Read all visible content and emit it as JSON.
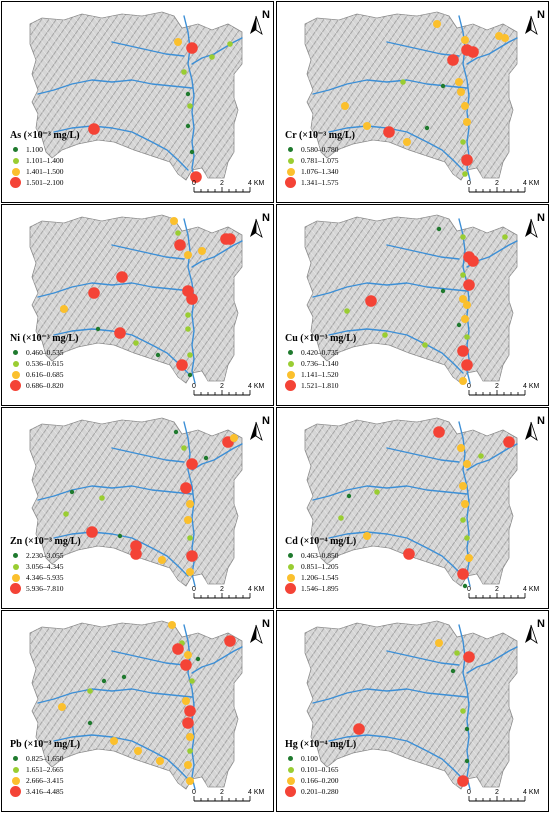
{
  "scale_bar": {
    "ticks": [
      "0",
      "2",
      "4 KM"
    ]
  },
  "north_label": "N",
  "colors": {
    "class1": "#1f7a2e",
    "class2": "#9acd32",
    "class3": "#fbc02d",
    "class4": "#f44336",
    "river": "#3c8fd6",
    "terrain": "#c8c8c8"
  },
  "panels": [
    {
      "id": "as",
      "title": "As (×10⁻³ mg/L)",
      "classes": [
        "1.100",
        "1.101–1.400",
        "1.401–1.500",
        "1.501–2.100"
      ]
    },
    {
      "id": "cr",
      "title": "Cr (×10⁻³ mg/L)",
      "classes": [
        "0.580–0.780",
        "0.781–1.075",
        "1.076–1.340",
        "1.341–1.575"
      ]
    },
    {
      "id": "ni",
      "title": "Ni (×10⁻³ mg/L)",
      "classes": [
        "0.460–0.535",
        "0.536–0.615",
        "0.616–0.685",
        "0.686–0.820"
      ]
    },
    {
      "id": "cu",
      "title": "Cu (×10⁻³ mg/L)",
      "classes": [
        "0.420–0.735",
        "0.736–1.140",
        "1.141–1.520",
        "1.521–1.810"
      ]
    },
    {
      "id": "zn",
      "title": "Zn (×10⁻³ mg/L)",
      "classes": [
        "2.230–3.055",
        "3.056–4.345",
        "4.346–5.935",
        "5.936–7.810"
      ]
    },
    {
      "id": "cd",
      "title": "Cd (×10⁻⁴ mg/L)",
      "classes": [
        "0.463–0.850",
        "0.851–1.205",
        "1.206–1.545",
        "1.546–1.895"
      ]
    },
    {
      "id": "pb",
      "title": "Pb (×10⁻³ mg/L)",
      "classes": [
        "0.825–1.650",
        "1.651–2.665",
        "2.666–3.415",
        "3.416–4.485"
      ]
    },
    {
      "id": "hg",
      "title": "Hg (×10⁻⁴ mg/L)",
      "classes": [
        "0.100",
        "0.101–0.165",
        "0.166–0.200",
        "0.201–0.280"
      ]
    }
  ]
}
